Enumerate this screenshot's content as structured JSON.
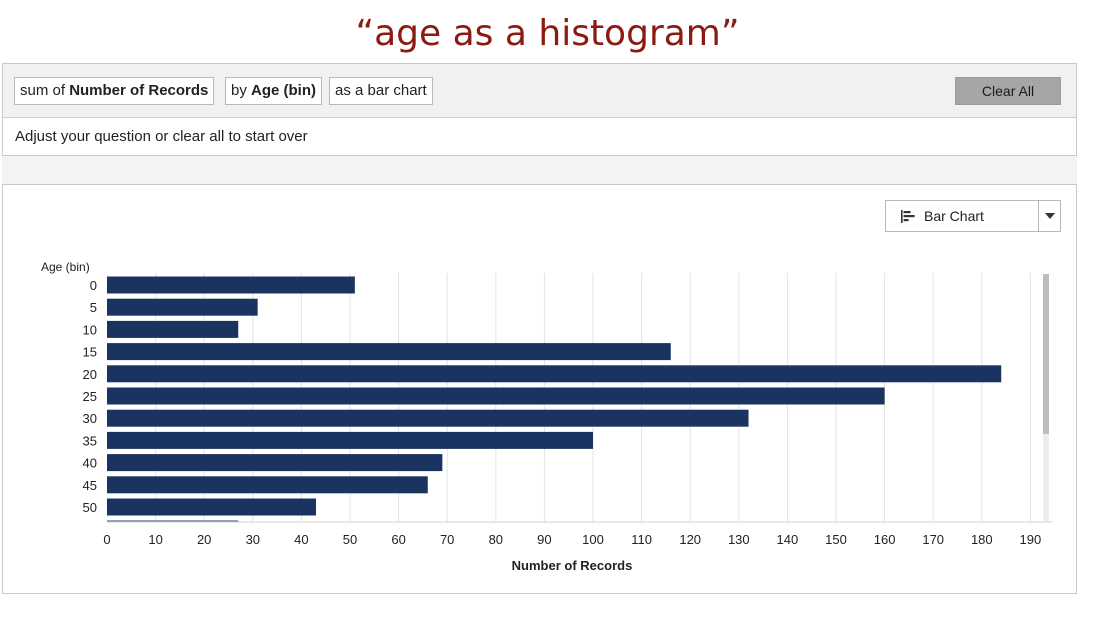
{
  "slide": {
    "title": "“age as a histogram”"
  },
  "query": {
    "chip1": {
      "prefix": "sum of ",
      "bold": "Number of Records"
    },
    "chip2": {
      "prefix": "by ",
      "bold": "Age (bin)"
    },
    "chip3": {
      "text": "as a bar chart"
    },
    "clear_label": "Clear All",
    "hint": "Adjust your question or clear all to start over"
  },
  "viz_type": {
    "label": "Bar Chart",
    "icon": "bar-chart-icon"
  },
  "colors": {
    "bar": "#1b3360",
    "grid": "#e3e3e3",
    "title": "#8b1a10"
  },
  "chart_data": {
    "type": "bar",
    "orientation": "horizontal",
    "xlabel": "Number of Records",
    "ylabel": "Age (bin)",
    "categories": [
      "0",
      "5",
      "10",
      "15",
      "20",
      "25",
      "30",
      "35",
      "40",
      "45",
      "50"
    ],
    "values": [
      51,
      31,
      27,
      116,
      184,
      160,
      132,
      100,
      69,
      66,
      43
    ],
    "xlim": [
      0,
      195
    ],
    "xticks": [
      0,
      10,
      20,
      30,
      40,
      50,
      60,
      70,
      80,
      90,
      100,
      110,
      120,
      130,
      140,
      150,
      160,
      170,
      180,
      190
    ],
    "grid": true,
    "partial_next_bar_value": 27
  }
}
